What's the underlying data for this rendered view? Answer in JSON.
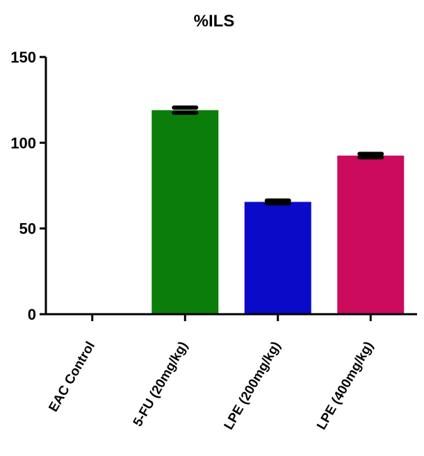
{
  "chart_data": {
    "type": "bar",
    "title": "%ILS",
    "xlabel": "",
    "ylabel": "",
    "ylim": [
      0,
      150
    ],
    "yticks": [
      "0",
      "50",
      "100",
      "150"
    ],
    "categories": [
      "EAC Control",
      "5-FU (20mg/kg)",
      "LPE (200mg/kg)",
      "LPE (400mg/kg)"
    ],
    "values": [
      0,
      119,
      65.5,
      92.5
    ],
    "errors": [
      0,
      1.5,
      0.8,
      1.0
    ],
    "colors": [
      "#ffffff",
      "#0a7d0a",
      "#0a0ac8",
      "#cc0a5e"
    ],
    "grid": false,
    "legend": "none"
  }
}
